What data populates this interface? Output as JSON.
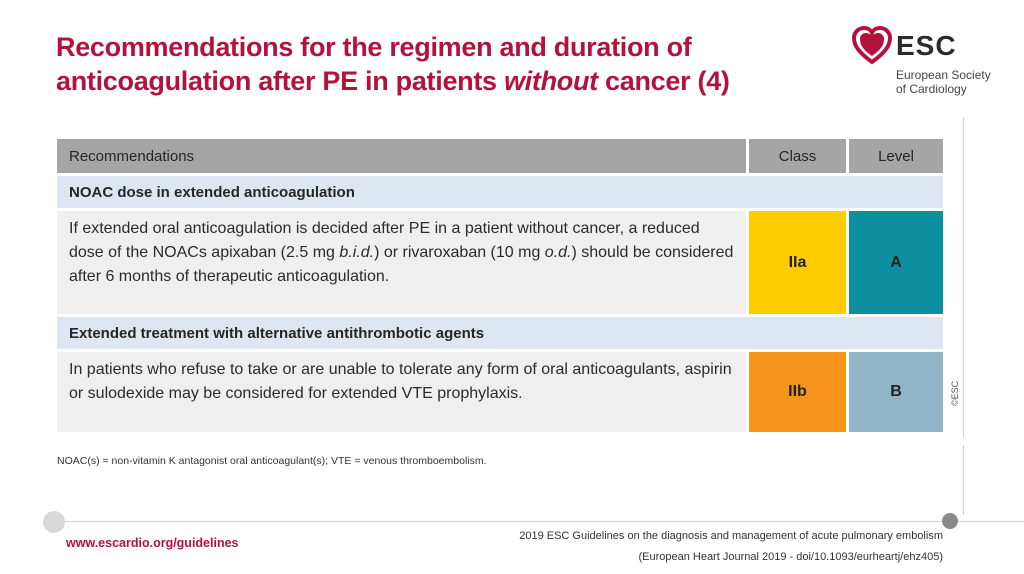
{
  "title": {
    "line1": "Recommendations for the regimen  and duration of",
    "line2_pre": "anticoagulation after PE  in patients ",
    "line2_italic": "without",
    "line2_post": " cancer (4)"
  },
  "logo": {
    "name": "ESC",
    "sub1": "European Society",
    "sub2": "of Cardiology",
    "icon": "heart-icon",
    "color": "#b3123c"
  },
  "table": {
    "headers": {
      "recommendations": "Recommendations",
      "class": "Class",
      "level": "Level"
    },
    "section1": "NOAC dose in extended anticoagulation",
    "row1": {
      "t1": "If extended  oral anticoagulation  is decided after PE in a patient without cancer, a reduced dose of the NOACs apixaban (2.5 mg ",
      "i1": "b.i.d.",
      "t2": ") or rivaroxaban (10 mg ",
      "i2": "o.d.",
      "t3": ") should be considered after  6 months of therapeutic anticoagulation.",
      "class": "IIa",
      "level": "A"
    },
    "section2": "Extended treatment with alternative antithrombotic agents",
    "row2": {
      "text": "In patients who refuse to take or are unable to tolerate  any form of oral anticoagulants,  aspirin or sulodexide may be considered for extended VTE prophylaxis.",
      "class": "IIb",
      "level": "B"
    }
  },
  "copyright": "©ESC",
  "footnote": "NOAC(s) = non-vitamin K antagonist oral anticoagulant(s); VTE = venous thromboembolism.",
  "footer": {
    "url": "www.escardio.org/guidelines",
    "citation1": "2019  ESC Guidelines on the diagnosis and management of acute pulmonary embolism",
    "citation2": "(European Heart Journal 2019 - doi/10.1093/eurheartj/ehz405)"
  }
}
